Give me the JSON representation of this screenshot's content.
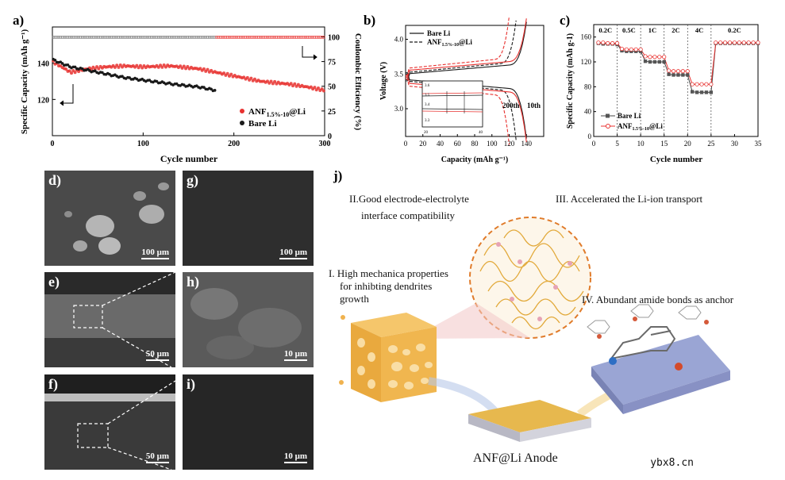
{
  "panels": {
    "a": "a)",
    "b": "b)",
    "c": "c)",
    "d": "d)",
    "e": "e)",
    "f": "f)",
    "g": "g)",
    "h": "h)",
    "i": "i)",
    "j": "j)"
  },
  "chart_a": {
    "type": "scatter",
    "xlabel": "Cycle number",
    "ylabel": "Specific Capacity (mAh g⁻¹)",
    "y2label": "Coulombic Efficiency (%)",
    "xlim": [
      0,
      300
    ],
    "ylim": [
      100,
      160
    ],
    "y2lim": [
      0,
      110
    ],
    "xticks": [
      "0",
      "100",
      "200",
      "300"
    ],
    "yticks": [
      "120",
      "140"
    ],
    "y2ticks": [
      "0",
      "25",
      "50",
      "75",
      "100"
    ],
    "legend": [
      "ANF1.5%-10@Li",
      "Bare Li"
    ],
    "legend_main": "ANF",
    "legend_sub": "1.5%-10",
    "legend_tail": "@Li",
    "legend2": "Bare Li",
    "series_red_keypoints": [
      [
        0,
        141
      ],
      [
        20,
        135
      ],
      [
        40,
        137
      ],
      [
        60,
        138
      ],
      [
        80,
        138.5
      ],
      [
        100,
        138
      ],
      [
        130,
        138.5
      ],
      [
        160,
        137
      ],
      [
        200,
        133
      ],
      [
        230,
        130
      ],
      [
        260,
        128.5
      ],
      [
        280,
        127
      ],
      [
        300,
        125
      ]
    ],
    "series_black_keypoints": [
      [
        0,
        142
      ],
      [
        20,
        138
      ],
      [
        50,
        135
      ],
      [
        80,
        132
      ],
      [
        110,
        130
      ],
      [
        140,
        128
      ],
      [
        160,
        127
      ],
      [
        180,
        125
      ]
    ]
  },
  "chart_b": {
    "type": "line",
    "xlabel": "Capacity (mAh g⁻¹)",
    "ylabel": "Voltage (V)",
    "xlim": [
      0,
      160
    ],
    "ylim": [
      2.6,
      4.2
    ],
    "xticks": [
      "0",
      "20",
      "40",
      "60",
      "80",
      "100",
      "120",
      "140"
    ],
    "yticks": [
      "3.0",
      "3.5",
      "4.0"
    ],
    "legend1": "Bare Li",
    "legend2_main": "ANF",
    "legend2_sub": "1.5%-10",
    "legend2_tail": "@Li",
    "annot1": "200th",
    "annot2": "10th",
    "inset_xticks": [
      "20",
      "40"
    ],
    "inset_yticks": [
      "3.6",
      "3.5",
      "3.4",
      "3.3"
    ]
  },
  "chart_c": {
    "type": "line",
    "xlabel": "Cycle number",
    "ylabel": "Specific Capacity (mAh g-1)",
    "xlim": [
      0,
      35
    ],
    "ylim": [
      0,
      180
    ],
    "xticks": [
      "0",
      "5",
      "10",
      "15",
      "20",
      "25",
      "30",
      "35"
    ],
    "yticks": [
      "0",
      "40",
      "80",
      "120",
      "160"
    ],
    "rates": [
      "0.2C",
      "0.5C",
      "1C",
      "2C",
      "4C",
      "0.2C"
    ],
    "legend1": "Bare Li",
    "legend2_main": "ANF",
    "legend2_sub": "1.5%-10",
    "legend2_tail": "@Li",
    "bare": [
      150,
      149,
      149,
      149,
      148,
      138,
      137,
      137,
      137,
      137,
      121,
      120,
      120,
      120,
      120,
      100,
      99,
      99,
      99,
      99,
      72,
      71,
      71,
      71,
      71,
      150,
      150,
      150,
      150,
      150,
      150,
      150,
      150,
      150,
      150
    ],
    "anf": [
      151,
      151,
      150,
      150,
      150,
      141,
      140,
      140,
      140,
      140,
      129,
      128,
      128,
      128,
      128,
      106,
      105,
      105,
      105,
      105,
      84,
      84,
      84,
      84,
      84,
      151,
      151,
      151,
      151,
      151,
      151,
      151,
      151,
      151,
      151
    ]
  },
  "sem": {
    "d_scale": "100 μm",
    "g_scale": "100 μm",
    "e_scale": "50 μm",
    "h_scale": "10 μm",
    "f_scale": "50 μm",
    "i_scale": "10 μm"
  },
  "schematic": {
    "t1a": "II.Good electrode-electrolyte",
    "t1b": "interface compatibility",
    "t2": "III. Accelerated the Li-ion transport",
    "t3a": "I. High mechanica properties",
    "t3b": "for inhibting dendrites",
    "t3c": "growth",
    "t4": "IV. Abundant amide bonds as anchor",
    "anode": "ANF@Li Anode"
  },
  "watermark": "ybx8.cn",
  "colors": {
    "red": "#e8312f",
    "black": "#1a1a1a",
    "gray": "#555555",
    "orange": "#e07b2a",
    "gold": "#e8b24a"
  }
}
